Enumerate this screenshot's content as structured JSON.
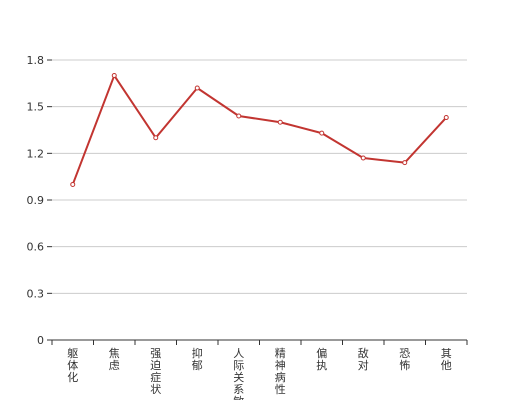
{
  "chart_data": {
    "type": "line",
    "title": "",
    "xlabel": "",
    "ylabel": "",
    "categories": [
      "躯体化",
      "焦虑",
      "强迫症状",
      "抑郁",
      "人际关系敏感",
      "精神病性",
      "偏执",
      "敌对",
      "恐怖",
      "其他"
    ],
    "series": [
      {
        "values": [
          1.0,
          1.7,
          1.3,
          1.62,
          1.44,
          1.4,
          1.33,
          1.17,
          1.14,
          1.43
        ]
      }
    ],
    "ylim": [
      0,
      1.8
    ],
    "yticks": [
      "0",
      "0.3",
      "0.6",
      "0.9",
      "1.2",
      "1.5",
      "1.8"
    ],
    "grid": true,
    "line_color": "#c23531",
    "grid_color": "#cccccc",
    "axis_color": "#333333"
  }
}
